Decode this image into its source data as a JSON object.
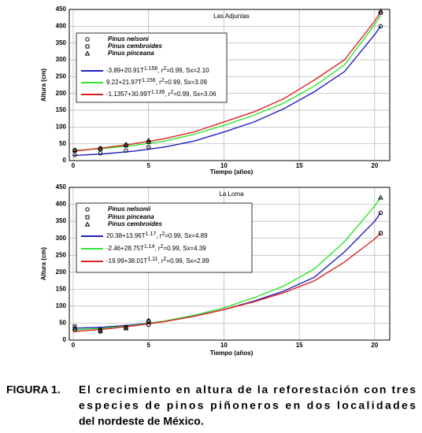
{
  "chart_data": [
    {
      "type": "line",
      "title": "Las Adjuntas",
      "x_label": "Tiempo (años)",
      "y_label": "Altura (cm)",
      "xlim": [
        0,
        21
      ],
      "ylim": [
        0,
        450
      ],
      "xticks": [
        0,
        5,
        10,
        15,
        20
      ],
      "yticks": [
        0,
        50,
        100,
        150,
        200,
        250,
        300,
        350,
        400,
        450
      ],
      "grid": true,
      "x": [
        0,
        2,
        4,
        6,
        8,
        10,
        12,
        14,
        16,
        18,
        20,
        20.4
      ],
      "series": [
        {
          "name": [
            "-3.89+20.91T",
            "1.158",
            ", r",
            "2",
            "=0.99, Sx=2.10"
          ],
          "color": "#1f1fbf",
          "values": [
            15,
            20,
            28,
            40,
            58,
            85,
            115,
            155,
            205,
            265,
            375,
            400
          ]
        },
        {
          "name": [
            "9.22+21.97T",
            "1.156",
            ", r",
            "2",
            "=0.99, Sx=3.09"
          ],
          "color": "#2ee62e",
          "values": [
            30,
            36,
            45,
            58,
            78,
            105,
            135,
            172,
            222,
            285,
            405,
            432
          ]
        },
        {
          "name": [
            "-1.1357+30.99T",
            "1.139",
            ", r",
            "2",
            "=0.99, Sx=3.06"
          ],
          "color": "#e02020",
          "values": [
            28,
            38,
            50,
            65,
            85,
            115,
            145,
            185,
            240,
            300,
            415,
            442
          ]
        }
      ],
      "points": {
        "x": [
          0.1,
          1.8,
          3.5,
          5,
          20.4
        ],
        "series": [
          {
            "name": "Pinus nelsoni",
            "marker": "circle",
            "values": [
              17,
              22,
              30,
              40,
              400
            ]
          },
          {
            "name": "Pinus cembroides",
            "marker": "square",
            "values": [
              30,
              35,
              45,
              55,
              440
            ]
          },
          {
            "name": "Pinus pinceana",
            "marker": "triangle",
            "values": [
              32,
              37,
              48,
              60,
              445
            ]
          }
        ]
      }
    },
    {
      "type": "line",
      "title": "La Loma",
      "x_label": "Tiempo (años)",
      "y_label": "Altura (cm)",
      "xlim": [
        0,
        21
      ],
      "ylim": [
        0,
        450
      ],
      "xticks": [
        0,
        5,
        10,
        15,
        20
      ],
      "yticks": [
        0,
        50,
        100,
        150,
        200,
        250,
        300,
        350,
        400,
        450
      ],
      "grid": true,
      "x": [
        0,
        2,
        4,
        6,
        8,
        10,
        12,
        14,
        16,
        18,
        20,
        20.4
      ],
      "series": [
        {
          "name": [
            "20.38+13.96T",
            "1.17",
            ", r",
            "2",
            "=0.99, Sx=4.89"
          ],
          "color": "#1f1fbf",
          "values": [
            35,
            38,
            45,
            55,
            70,
            90,
            115,
            145,
            185,
            260,
            350,
            375
          ]
        },
        {
          "name": [
            "-2.46+28.75T",
            "1.14",
            ", r",
            "2",
            "=0.99, Sx=4.39"
          ],
          "color": "#2ee62e",
          "values": [
            30,
            35,
            43,
            56,
            73,
            95,
            125,
            160,
            210,
            290,
            395,
            420
          ]
        },
        {
          "name": [
            "-19.99+38.01T",
            "1.11",
            ", r",
            "2",
            "=0.99, Sx=2.89"
          ],
          "color": "#e02020",
          "values": [
            25,
            32,
            42,
            54,
            70,
            90,
            113,
            140,
            175,
            230,
            298,
            315
          ]
        }
      ],
      "points": {
        "x": [
          0.1,
          1.8,
          3.5,
          5,
          20.4
        ],
        "series": [
          {
            "name": "Pinus nelsonii",
            "marker": "circle",
            "values": [
              30,
              25,
              35,
              45,
              375
            ]
          },
          {
            "name": "Pinus pinceana",
            "marker": "square",
            "values": [
              40,
              30,
              38,
              55,
              315
            ]
          },
          {
            "name": "Pinus cembroides",
            "marker": "triangle",
            "values": [
              35,
              28,
              35,
              58,
              420
            ]
          }
        ]
      }
    }
  ],
  "caption": {
    "label": "FIGURA 1.",
    "lines": [
      "El crecimiento en altura de la reforestación con tres",
      "especies de pinos piñoneros en dos localidades",
      "del nordeste de México."
    ]
  }
}
